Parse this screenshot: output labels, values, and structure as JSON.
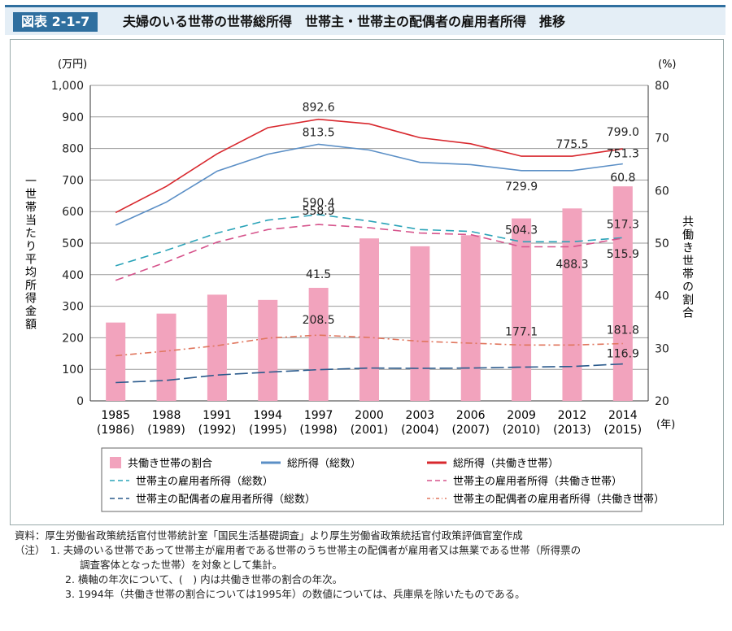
{
  "header": {
    "figure_label": "図表 2-1-7",
    "title": "夫婦のいる世帯の世帯総所得　世帯主・世帯主の配偶者の雇用者所得　推移"
  },
  "chart_data": {
    "type": "bar",
    "categories": [
      "1985\n(1986)",
      "1988\n(1989)",
      "1991\n(1992)",
      "1994\n(1995)",
      "1997\n(1998)",
      "2000\n(2001)",
      "2003\n(2004)",
      "2006\n(2007)",
      "2009\n(2010)",
      "2012\n(2013)",
      "2014\n(2015)"
    ],
    "left_axis": {
      "unit_label": "(万円)",
      "label": "一世帯当たり平均所得金額",
      "ylim": [
        0,
        1000
      ],
      "ticks": [
        "0",
        "100",
        "200",
        "300",
        "400",
        "500",
        "600",
        "700",
        "800",
        "900",
        "1,000"
      ]
    },
    "right_axis": {
      "unit_label": "(%)",
      "label": "共働き世帯の割合",
      "ylim": [
        20,
        80
      ],
      "ticks": [
        "20",
        "30",
        "40",
        "50",
        "60",
        "70",
        "80"
      ]
    },
    "x_unit_label": "(年)",
    "grid": true,
    "bars": {
      "name": "共働き世帯の割合",
      "axis": "right",
      "color": "#f2a3bd",
      "values": [
        34.9,
        36.6,
        40.2,
        39.2,
        41.5,
        50.9,
        49.4,
        51.5,
        54.7,
        56.6,
        60.8
      ]
    },
    "series": [
      {
        "name": "総所得（総数）",
        "color": "#5b8fc6",
        "dash": "solid",
        "values": [
          557,
          630,
          728,
          782,
          813.5,
          795,
          756,
          749,
          729.9,
          729.9,
          751.3
        ]
      },
      {
        "name": "総所得（共働き世帯）",
        "color": "#d8282e",
        "dash": "solid",
        "values": [
          597,
          680,
          783,
          866,
          892.6,
          878,
          834,
          815,
          775.5,
          775.5,
          799.0
        ]
      },
      {
        "name": "世帯主の雇用者所得（総数）",
        "color": "#2aa3b8",
        "dash": "dash",
        "values": [
          428,
          477,
          532,
          573,
          590.4,
          570,
          543,
          537,
          504.3,
          504.3,
          517.3
        ]
      },
      {
        "name": "世帯主の雇用者所得（共働き世帯）",
        "color": "#d6548c",
        "dash": "dash",
        "values": [
          382,
          440,
          503,
          543,
          558.9,
          549,
          532,
          527,
          488.3,
          488.3,
          515.9
        ]
      },
      {
        "name": "世帯主の配偶者の雇用者所得（総数）",
        "color": "#2a5a8c",
        "dash": "longdash",
        "values": [
          58,
          65,
          82,
          91,
          99,
          104,
          103,
          104,
          107,
          109,
          116.9
        ]
      },
      {
        "name": "世帯主の配偶者の雇用者所得（共働き世帯）",
        "color": "#e0765e",
        "dash": "dashdot",
        "values": [
          143,
          158,
          175,
          199,
          208.5,
          201,
          189,
          183,
          177.1,
          177.1,
          181.8
        ]
      }
    ],
    "annotations": [
      "892.6",
      "813.5",
      "590.4",
      "558.9",
      "41.5",
      "208.5",
      "775.5",
      "799.0",
      "751.3",
      "729.9",
      "60.8",
      "504.3",
      "517.3",
      "488.3",
      "515.9",
      "177.1",
      "181.8",
      "116.9"
    ]
  },
  "notes": {
    "source": "資料：厚生労働省政策統括官付世帯統計室「国民生活基礎調査」より厚生労働省政策統括官付政策評価官室作成",
    "note1a": "（注）　1.  夫婦のいる世帯であって世帯主が雇用者である世帯のうち世帯主の配偶者が雇用者又は無業である世帯（所得票の",
    "note1b": "調査客体となった世帯）を対象として集計。",
    "note2": "2.  横軸の年次について、(　) 内は共働き世帯の割合の年次。",
    "note3": "3.  1994年（共働き世帯の割合については1995年）の数値については、兵庫県を除いたものである。"
  }
}
